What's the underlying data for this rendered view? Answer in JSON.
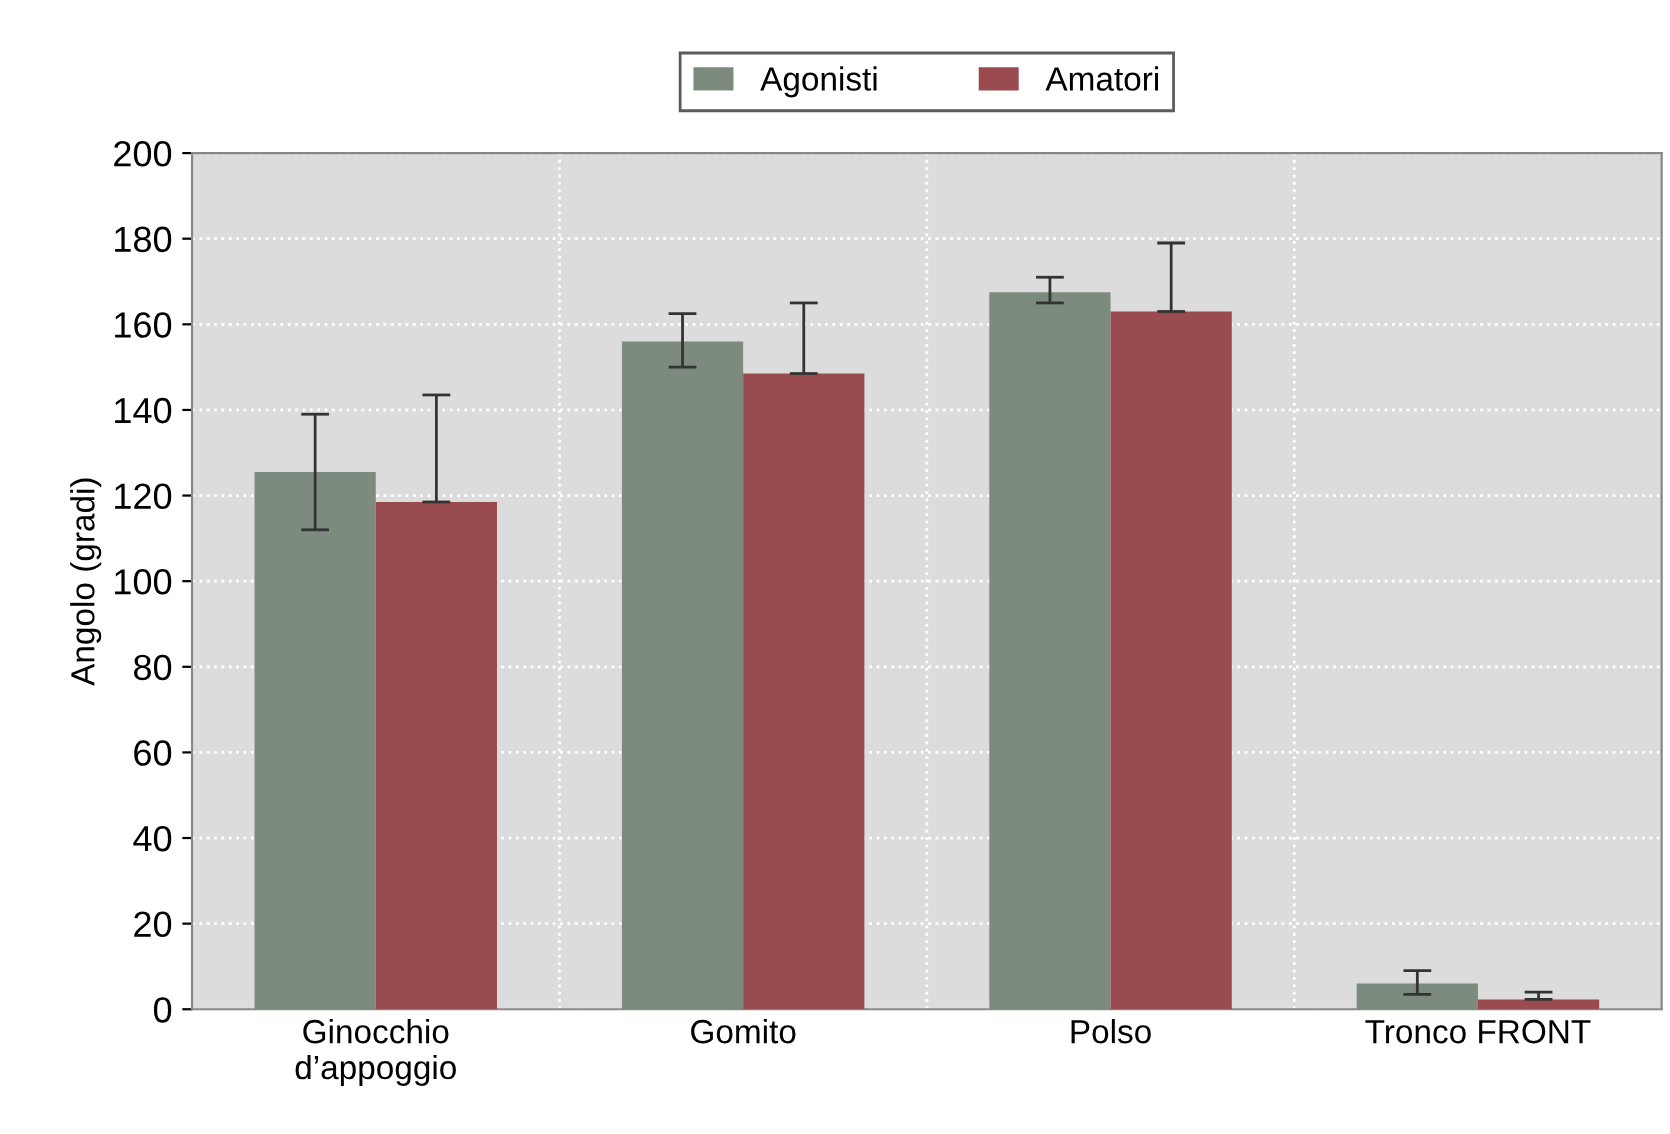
{
  "chart_data": {
    "type": "bar",
    "ylabel": "Angolo (gradi)",
    "categories": [
      "Ginocchio\nd’appoggio",
      "Gomito",
      "Polso",
      "Tronco FRONT"
    ],
    "series": [
      {
        "name": "Agonisti",
        "color": "#7d8a7e",
        "values": [
          125.5,
          156,
          167.5,
          6
        ],
        "errors": [
          [
            112,
            139
          ],
          [
            150,
            162.5
          ],
          [
            165,
            171
          ],
          [
            3.5,
            9
          ]
        ]
      },
      {
        "name": "Amatori",
        "color": "#9a4b50",
        "values": [
          118.5,
          148.5,
          163,
          2.3
        ],
        "errors": [
          [
            118.5,
            143.5
          ],
          [
            148.5,
            165
          ],
          [
            163,
            179
          ],
          [
            2.3,
            4
          ]
        ]
      }
    ],
    "ylim": [
      0,
      200
    ],
    "yticks": [
      0,
      20,
      40,
      60,
      80,
      100,
      120,
      140,
      160,
      180,
      200
    ],
    "grid": true,
    "legend": "top"
  }
}
